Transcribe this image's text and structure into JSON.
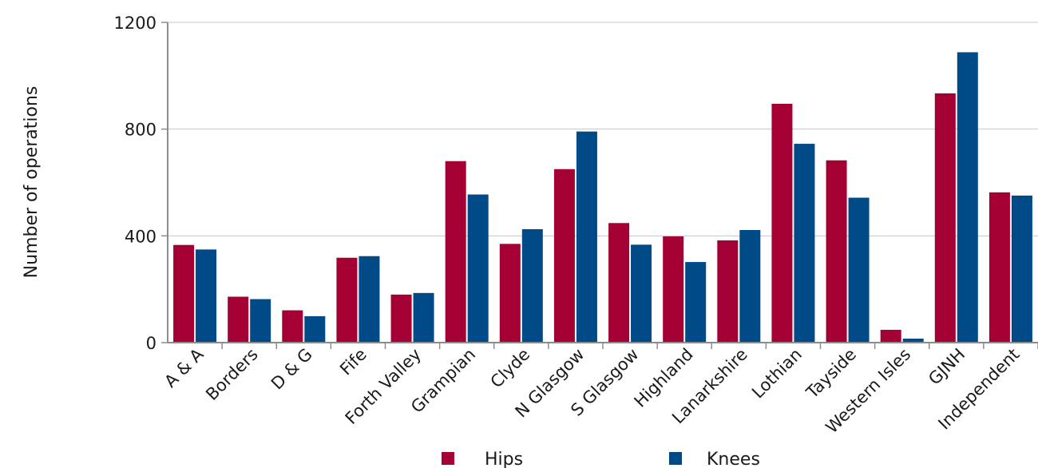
{
  "chart_data": {
    "type": "bar",
    "title": "",
    "xlabel": "",
    "ylabel": "Number of operations",
    "ylim": [
      0,
      1200
    ],
    "yticks": [
      "0",
      "400",
      "800",
      "1200"
    ],
    "categories": [
      "A & A",
      "Borders",
      "D & G",
      "Fife",
      "Forth Valley",
      "Grampian",
      "Clyde",
      "N Glasgow",
      "S Glasgow",
      "Highland",
      "Lanarkshire",
      "Lothian",
      "Tayside",
      "Western Isles",
      "GJNH",
      "Independent"
    ],
    "series": [
      {
        "name": "Hips",
        "color": "#a50034",
        "values": [
          366,
          172,
          121,
          318,
          180,
          680,
          370,
          650,
          448,
          398,
          383,
          895,
          683,
          48,
          934,
          563
        ]
      },
      {
        "name": "Knees",
        "color": "#004b87",
        "values": [
          349,
          163,
          99,
          324,
          186,
          555,
          425,
          791,
          367,
          302,
          422,
          745,
          543,
          15,
          1088,
          551
        ]
      }
    ],
    "grid": true,
    "legend_position": "bottom"
  }
}
